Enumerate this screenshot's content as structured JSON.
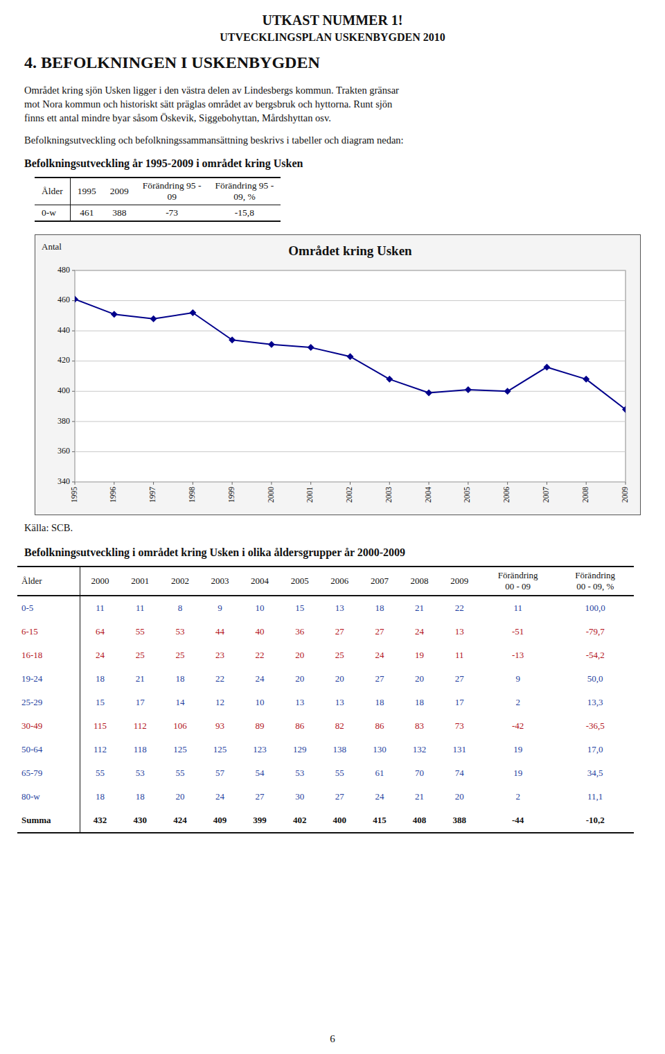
{
  "header": {
    "title1": "UTKAST NUMMER 1!",
    "title2": "UTVECKLINGSPLAN USKENBYGDEN 2010",
    "title3": "4. BEFOLKNINGEN I USKENBYGDEN",
    "para1": [
      "Området kring sjön Usken ligger i den västra delen av Lindesbergs kommun. Trakten gränsar",
      "mot Nora kommun och historiskt sätt präglas området av bergsbruk och hyttorna. Runt sjön",
      "finns ett antal mindre byar såsom Öskevik, Siggebohyttan, Mårdshyttan osv."
    ],
    "para2": "Befolkningsutveckling och befolkningssammansättning beskrivs i tabeller och diagram nedan:",
    "section1": "Befolkningsutveckling år 1995-2009 i området kring Usken",
    "source": "Källa: SCB.",
    "section2": "Befolkningsutveckling i området kring Usken i olika åldersgrupper år 2000-2009",
    "page_number": "6"
  },
  "table1": {
    "columns": [
      "Ålder",
      "1995",
      "2009",
      "Förändring 95 -\n09",
      "Förändring 95 -\n09, %"
    ],
    "rows": [
      [
        "0-w",
        "461",
        "388",
        "-73",
        "-15,8"
      ]
    ]
  },
  "chart_data": {
    "type": "line",
    "title": "Området kring Usken",
    "y_label": "Antal",
    "x": [
      1995,
      1996,
      1997,
      1998,
      1999,
      2000,
      2001,
      2002,
      2003,
      2004,
      2005,
      2006,
      2007,
      2008,
      2009
    ],
    "values": [
      461,
      451,
      448,
      452,
      434,
      431,
      429,
      423,
      408,
      399,
      401,
      400,
      416,
      408,
      388
    ],
    "color": "#00008B",
    "marker": "diamond",
    "xlim": [
      1995,
      2009
    ],
    "xticks": [
      1995,
      1996,
      1997,
      1998,
      1999,
      2000,
      2001,
      2002,
      2003,
      2004,
      2005,
      2006,
      2007,
      2008,
      2009
    ],
    "ylim": [
      340,
      480
    ],
    "yticks": [
      340,
      360,
      380,
      400,
      420,
      440,
      460,
      480
    ],
    "grid": true
  },
  "table2": {
    "columns": [
      "Ålder",
      "2000",
      "2001",
      "2002",
      "2003",
      "2004",
      "2005",
      "2006",
      "2007",
      "2008",
      "2009",
      "Förändring\n00 - 09",
      "Förändring\n00 - 09, %"
    ],
    "rows": [
      [
        "0-5",
        "11",
        "11",
        "8",
        "9",
        "10",
        "15",
        "13",
        "18",
        "21",
        "22",
        "11",
        "100,0"
      ],
      [
        "6-15",
        "64",
        "55",
        "53",
        "44",
        "40",
        "36",
        "27",
        "27",
        "24",
        "13",
        "-51",
        "-79,7"
      ],
      [
        "16-18",
        "24",
        "25",
        "25",
        "23",
        "22",
        "20",
        "25",
        "24",
        "19",
        "11",
        "-13",
        "-54,2"
      ],
      [
        "19-24",
        "18",
        "21",
        "18",
        "22",
        "24",
        "20",
        "20",
        "27",
        "20",
        "27",
        "9",
        "50,0"
      ],
      [
        "25-29",
        "15",
        "17",
        "14",
        "12",
        "10",
        "13",
        "13",
        "18",
        "18",
        "17",
        "2",
        "13,3"
      ],
      [
        "30-49",
        "115",
        "112",
        "106",
        "93",
        "89",
        "86",
        "82",
        "86",
        "83",
        "73",
        "-42",
        "-36,5"
      ],
      [
        "50-64",
        "112",
        "118",
        "125",
        "125",
        "123",
        "129",
        "138",
        "130",
        "132",
        "131",
        "19",
        "17,0"
      ],
      [
        "65-79",
        "55",
        "53",
        "55",
        "57",
        "54",
        "53",
        "55",
        "61",
        "70",
        "74",
        "19",
        "34,5"
      ],
      [
        "80-w",
        "18",
        "18",
        "20",
        "24",
        "27",
        "30",
        "27",
        "24",
        "21",
        "20",
        "2",
        "11,1"
      ],
      [
        "Summa",
        "432",
        "430",
        "424",
        "409",
        "399",
        "402",
        "400",
        "415",
        "408",
        "388",
        "-44",
        "-10,2"
      ]
    ],
    "row_colors": [
      "blue",
      "red",
      "red",
      "blue",
      "blue",
      "red",
      "blue",
      "blue",
      "blue",
      "black"
    ]
  }
}
